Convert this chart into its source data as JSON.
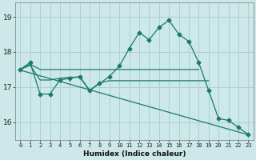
{
  "xlabel": "Humidex (Indice chaleur)",
  "background_color": "#cce8e8",
  "grid_color": "#aacccc",
  "line_color": "#1a7a6a",
  "x_hours": [
    0,
    1,
    2,
    3,
    4,
    5,
    6,
    7,
    8,
    9,
    10,
    11,
    12,
    13,
    14,
    15,
    16,
    17,
    18,
    19,
    20,
    21,
    22,
    23
  ],
  "line_humidex": [
    17.5,
    17.7,
    16.8,
    16.8,
    17.2,
    17.25,
    17.3,
    16.9,
    17.1,
    17.3,
    17.6,
    18.1,
    18.55,
    18.35,
    18.7,
    18.9,
    18.5,
    18.3,
    17.7,
    16.9,
    16.1,
    16.05,
    15.85,
    15.65
  ],
  "line_flat_high": [
    17.5,
    17.65,
    17.5,
    17.5,
    17.5,
    17.5,
    17.5,
    17.5,
    17.5,
    17.5,
    17.5,
    17.5,
    17.5,
    17.5,
    17.5,
    17.5,
    17.5,
    17.5,
    17.5,
    null,
    null,
    null,
    null,
    null
  ],
  "line_flat_mid": [
    17.5,
    17.62,
    17.2,
    17.2,
    17.25,
    17.28,
    17.28,
    16.9,
    17.12,
    17.18,
    17.18,
    17.18,
    17.18,
    17.18,
    17.18,
    17.18,
    17.18,
    17.18,
    17.18,
    17.18,
    null,
    null,
    null,
    null
  ],
  "line_diagonal": [
    17.48,
    17.4,
    17.32,
    17.24,
    17.16,
    17.08,
    17.0,
    16.92,
    16.84,
    16.76,
    16.68,
    16.6,
    16.52,
    16.44,
    16.36,
    16.28,
    16.2,
    16.12,
    16.04,
    15.96,
    15.88,
    15.8,
    15.72,
    15.64
  ],
  "ylim": [
    15.5,
    19.4
  ],
  "yticks": [
    16,
    17,
    18,
    19
  ],
  "xlim": [
    -0.5,
    23.5
  ],
  "figwidth": 3.2,
  "figheight": 2.0,
  "dpi": 100
}
